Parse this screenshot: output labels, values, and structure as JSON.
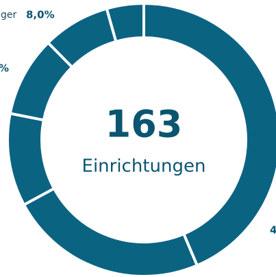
{
  "chart_data": {
    "type": "donut",
    "center_value": "163",
    "center_label": "Einrichtungen",
    "values": [
      43.6,
      23.5,
      11.0,
      9.5,
      8.0,
      4.4
    ],
    "value_labels": [
      null,
      null,
      null,
      null,
      "8,0%",
      null
    ],
    "annotations": [
      "ger",
      "%",
      "4"
    ],
    "color": "#0b6382"
  }
}
